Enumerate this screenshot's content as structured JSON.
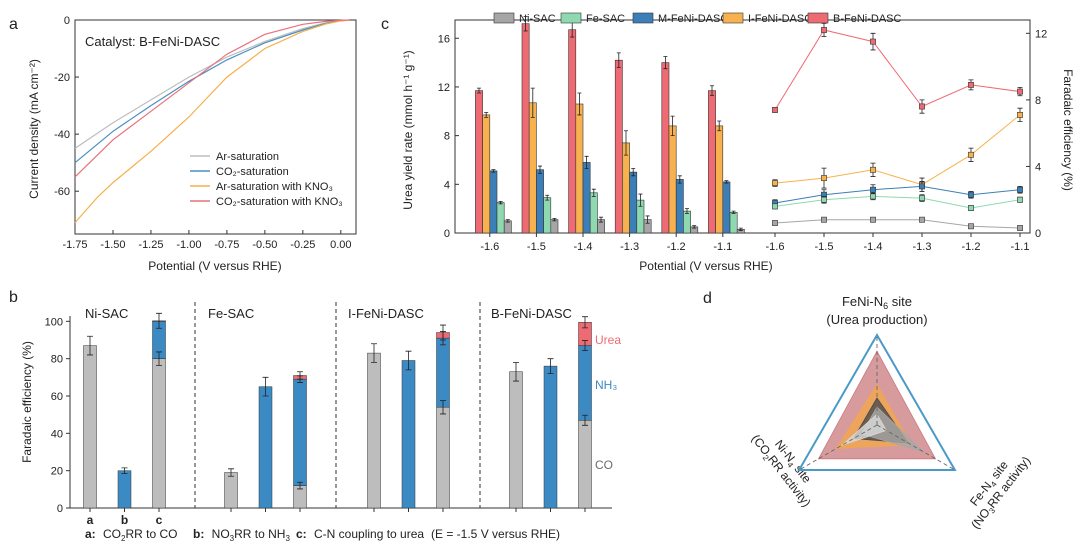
{
  "panel_labels": {
    "a": "a",
    "b": "b",
    "c": "c",
    "d": "d"
  },
  "chart_data": [
    {
      "id": "a",
      "type": "line",
      "annotation": "Catalyst: B-FeNi-DASC",
      "xlabel": "Potential (V versus RHE)",
      "ylabel": "Current density (mA cm⁻²)",
      "xlim": [
        -1.75,
        0.1
      ],
      "ylim": [
        -75,
        0
      ],
      "x_ticks": [
        -1.75,
        -1.5,
        -1.25,
        -1.0,
        -0.75,
        -0.5,
        -0.25,
        0.0
      ],
      "x_tick_labels": [
        "-1.75",
        "-1.50",
        "-1.25",
        "-1.00",
        "-0.75",
        "-0.50",
        "-0.25",
        "0.00"
      ],
      "y_ticks": [
        -60,
        -40,
        -20,
        0
      ],
      "y_tick_labels": [
        "-60",
        "-40",
        "-20",
        "0"
      ],
      "legend_position": "lower-right",
      "series": [
        {
          "name": "Ar-saturation",
          "color": "#bdbdbd",
          "x": [
            -1.75,
            -1.5,
            -1.25,
            -1.0,
            -0.75,
            -0.5,
            -0.25,
            -0.1,
            0.0,
            0.06
          ],
          "y": [
            -45,
            -36,
            -28,
            -20,
            -13,
            -7.5,
            -3,
            -1,
            -0.2,
            0
          ]
        },
        {
          "name": "CO₂-saturation",
          "color": "#4a8ec4",
          "x": [
            -1.75,
            -1.5,
            -1.25,
            -1.0,
            -0.75,
            -0.5,
            -0.25,
            -0.1,
            0.0,
            0.06
          ],
          "y": [
            -50,
            -39,
            -30,
            -21.5,
            -14,
            -8,
            -3.5,
            -1.2,
            -0.2,
            0
          ]
        },
        {
          "name": "Ar-saturation with KNO₃",
          "color": "#f5b04a",
          "x": [
            -1.75,
            -1.6,
            -1.5,
            -1.25,
            -1.0,
            -0.75,
            -0.5,
            -0.25,
            -0.1,
            0.0,
            0.06
          ],
          "y": [
            -71,
            -62,
            -57,
            -46,
            -34,
            -20,
            -10,
            -4,
            -1.4,
            -0.3,
            0
          ]
        },
        {
          "name": "CO₂-saturation with KNO₃",
          "color": "#e8707a",
          "x": [
            -1.75,
            -1.5,
            -1.25,
            -1.0,
            -0.75,
            -0.5,
            -0.25,
            -0.1,
            0.0,
            0.06
          ],
          "y": [
            -55,
            -42,
            -32,
            -22,
            -12,
            -5,
            -1.5,
            -0.5,
            -0.1,
            0
          ]
        }
      ]
    },
    {
      "id": "c-left",
      "type": "bar",
      "ylabel": "Urea yield rate (mmol h⁻¹ g⁻¹)",
      "xlabel": "Potential (V versus RHE)",
      "categories": [
        "-1.6",
        "-1.5",
        "-1.4",
        "-1.3",
        "-1.2",
        "-1.1"
      ],
      "ylim": [
        0,
        17.5
      ],
      "y_ticks": [
        0,
        4,
        8,
        12,
        16
      ],
      "legend_position": "top",
      "series": [
        {
          "name": "B-FeNi-DASC",
          "color": "#ef6b73",
          "values": [
            11.7,
            17.2,
            16.7,
            14.2,
            14.0,
            11.7
          ],
          "errors": [
            0.2,
            0.6,
            0.6,
            0.6,
            0.5,
            0.4
          ]
        },
        {
          "name": "I-FeNi-DASC",
          "color": "#f7b24f",
          "values": [
            9.7,
            10.7,
            10.6,
            7.4,
            8.8,
            8.8
          ],
          "errors": [
            0.2,
            1.2,
            0.9,
            1.0,
            0.8,
            0.4
          ]
        },
        {
          "name": "M-FeNi-DASC",
          "color": "#3c7fb8",
          "values": [
            5.1,
            5.2,
            5.8,
            5.0,
            4.4,
            4.2
          ],
          "errors": [
            0.1,
            0.3,
            0.5,
            0.3,
            0.3,
            0.1
          ]
        },
        {
          "name": "Fe-SAC",
          "color": "#8fd9b0",
          "values": [
            2.5,
            2.9,
            3.3,
            2.7,
            1.8,
            1.7
          ],
          "errors": [
            0.1,
            0.2,
            0.3,
            0.5,
            0.2,
            0.1
          ]
        },
        {
          "name": "Ni-SAC",
          "color": "#a6a6a6",
          "values": [
            1.0,
            1.1,
            1.1,
            1.1,
            0.5,
            0.3
          ],
          "errors": [
            0.1,
            0.1,
            0.2,
            0.3,
            0.1,
            0.1
          ]
        }
      ],
      "legend_order": [
        "Ni-SAC",
        "Fe-SAC",
        "M-FeNi-DASC",
        "I-FeNi-DASC",
        "B-FeNi-DASC"
      ]
    },
    {
      "id": "c-right",
      "type": "line",
      "ylabel": "Faradaic efficiency (%)",
      "categories": [
        "-1.6",
        "-1.5",
        "-1.4",
        "-1.3",
        "-1.2",
        "-1.1"
      ],
      "ylim": [
        0,
        12.8
      ],
      "y_ticks": [
        0,
        4,
        8,
        12
      ],
      "series": [
        {
          "name": "B-FeNi-DASC",
          "color": "#ef6b73",
          "values": [
            7.4,
            12.2,
            11.5,
            7.6,
            8.9,
            8.5
          ],
          "errors": [
            0.15,
            0.4,
            0.5,
            0.4,
            0.3,
            0.25
          ]
        },
        {
          "name": "I-FeNi-DASC",
          "color": "#f7b24f",
          "values": [
            3.0,
            3.3,
            3.8,
            2.9,
            4.7,
            7.1
          ],
          "errors": [
            0.2,
            0.6,
            0.4,
            0.4,
            0.4,
            0.4
          ]
        },
        {
          "name": "M-FeNi-DASC",
          "color": "#3c7fb8",
          "values": [
            1.8,
            2.3,
            2.6,
            2.8,
            2.3,
            2.6
          ],
          "errors": [
            0.2,
            0.3,
            0.3,
            0.3,
            0.2,
            0.2
          ]
        },
        {
          "name": "Fe-SAC",
          "color": "#8fd9b0",
          "values": [
            1.6,
            2.0,
            2.2,
            2.1,
            1.5,
            2.0
          ],
          "errors": [
            0.15,
            0.2,
            0.2,
            0.2,
            0.15,
            0.15
          ]
        },
        {
          "name": "Ni-SAC",
          "color": "#a6a6a6",
          "values": [
            0.6,
            0.8,
            0.8,
            0.8,
            0.4,
            0.3
          ],
          "errors": [
            0.1,
            0.1,
            0.1,
            0.1,
            0.1,
            0.1
          ]
        }
      ]
    },
    {
      "id": "b",
      "type": "bar",
      "stacked": true,
      "ylabel": "Faradaic efficiency (%)",
      "ylim": [
        0,
        105
      ],
      "y_ticks": [
        0,
        20,
        40,
        60,
        80,
        100
      ],
      "groups": [
        "Ni-SAC",
        "Fe-SAC",
        "I-FeNi-DASC",
        "B-FeNi-DASC"
      ],
      "bar_categories": [
        "a",
        "b",
        "c"
      ],
      "stack_labels": {
        "urea": "Urea",
        "nh3": "NH₃",
        "co": "CO"
      },
      "colors": {
        "co": "#bdbdbd",
        "nh3": "#3c8ac4",
        "urea": "#ef6b73"
      },
      "bars": [
        {
          "group": "Ni-SAC",
          "cat": "a",
          "co": 87,
          "nh3": 0,
          "urea": 0,
          "err": 5
        },
        {
          "group": "Ni-SAC",
          "cat": "b",
          "co": 0,
          "nh3": 20,
          "urea": 0,
          "err": 1.5
        },
        {
          "group": "Ni-SAC",
          "cat": "c",
          "co": 80,
          "nh3": 20,
          "urea": 0.3,
          "err": 4
        },
        {
          "group": "Fe-SAC",
          "cat": "a",
          "co": 19,
          "nh3": 0,
          "urea": 0,
          "err": 2
        },
        {
          "group": "Fe-SAC",
          "cat": "b",
          "co": 0,
          "nh3": 65,
          "urea": 0,
          "err": 5
        },
        {
          "group": "Fe-SAC",
          "cat": "c",
          "co": 12,
          "nh3": 57,
          "urea": 2,
          "err": 2
        },
        {
          "group": "I-FeNi-DASC",
          "cat": "a",
          "co": 83,
          "nh3": 0,
          "urea": 0,
          "err": 5
        },
        {
          "group": "I-FeNi-DASC",
          "cat": "b",
          "co": 0,
          "nh3": 79,
          "urea": 0,
          "err": 5
        },
        {
          "group": "I-FeNi-DASC",
          "cat": "c",
          "co": 54,
          "nh3": 37,
          "urea": 3,
          "err": 4
        },
        {
          "group": "B-FeNi-DASC",
          "cat": "a",
          "co": 73,
          "nh3": 0,
          "urea": 0,
          "err": 5
        },
        {
          "group": "B-FeNi-DASC",
          "cat": "b",
          "co": 0,
          "nh3": 76,
          "urea": 0,
          "err": 4
        },
        {
          "group": "B-FeNi-DASC",
          "cat": "c",
          "co": 47,
          "nh3": 40,
          "urea": 12.5,
          "err": 3
        }
      ],
      "caption": {
        "a_key": "a:",
        "a_text_1": "CO",
        "a_sub": "2",
        "a_text_2": "RR to CO",
        "b_key": "b:",
        "b_text_1": "NO",
        "b_sub": "3",
        "b_text_2": "RR to NH",
        "b_sub2": "3",
        "c_key": "c:",
        "c_text": "C-N coupling to urea",
        "condition": "(E = -1.5 V versus RHE)"
      }
    },
    {
      "id": "d",
      "type": "radar",
      "axes": [
        {
          "label_1": "FeNi-N",
          "label_1_sub": "6",
          "label_1_tail": " site",
          "label_2": "(Urea production)"
        },
        {
          "label_1": "Ni-N",
          "label_1_sub": "4",
          "label_1_tail": " site",
          "label_2": "(CO",
          "label_2_sub": "2",
          "label_2_tail": "RR activity)"
        },
        {
          "label_1": "Fe-N",
          "label_1_sub": "4",
          "label_1_tail": " site",
          "label_2": "(NO",
          "label_2_sub": "3",
          "label_2_tail": "RR activity)"
        }
      ],
      "series": [
        {
          "name": "outer",
          "color": "#4a9ac8",
          "values": [
            1.0,
            1.0,
            1.0
          ]
        },
        {
          "name": "B-FeNi-DASC",
          "color": "#c97a7e",
          "values": [
            0.82,
            0.75,
            0.75
          ]
        },
        {
          "name": "I-FeNi-DASC",
          "color": "#f2a64c",
          "values": [
            0.45,
            0.52,
            0.44
          ]
        },
        {
          "name": "M-FeNi-DASC",
          "color": "#4a4a4a",
          "values": [
            0.3,
            0.3,
            0.4
          ]
        },
        {
          "name": "Fe-SAC",
          "color": "#a8a8a8",
          "values": [
            0.2,
            0.2,
            0.6
          ]
        },
        {
          "name": "Ni-SAC",
          "color": "#d9d9d9",
          "values": [
            0.12,
            0.45,
            0.12
          ]
        }
      ]
    }
  ]
}
